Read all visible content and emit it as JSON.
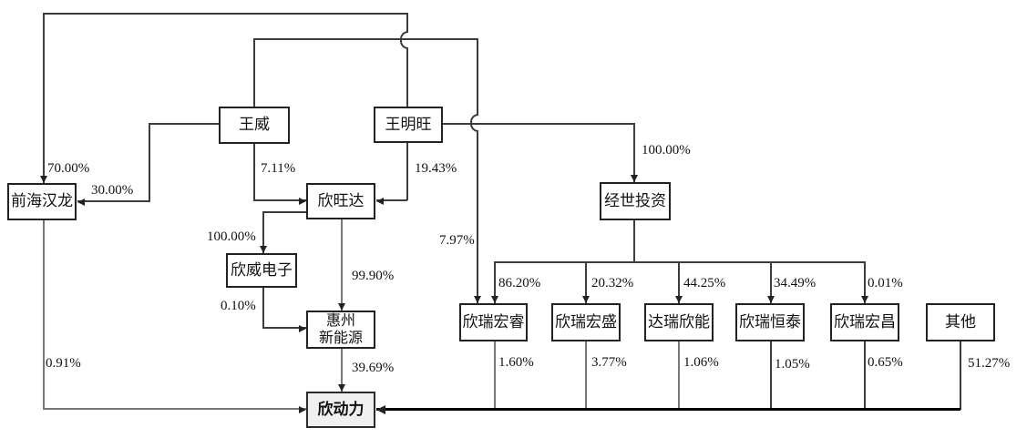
{
  "diagram_type": "equity-ownership-structure",
  "colors": {
    "line": "#3c3c3c",
    "thick_line": "#000000",
    "box_border": "#222222",
    "box_fill": "#ffffff",
    "highlight_box_fill": "#f0f0f0"
  },
  "nodes": [
    {
      "id": "qianhai-hanlong",
      "label": "前海汉龙"
    },
    {
      "id": "wang-wei",
      "label": "王威"
    },
    {
      "id": "wang-mingwang",
      "label": "王明旺"
    },
    {
      "id": "xinwangda",
      "label": "欣旺达"
    },
    {
      "id": "xinwei-dianzi",
      "label": "欣威电子"
    },
    {
      "id": "huizhou-xinnengyuan",
      "label": "惠州\n新能源"
    },
    {
      "id": "jingshi-touzi",
      "label": "经世投资"
    },
    {
      "id": "xinrui-hongrui",
      "label": "欣瑞宏睿"
    },
    {
      "id": "xinrui-hongsheng",
      "label": "欣瑞宏盛"
    },
    {
      "id": "darui-xinneng",
      "label": "达瑞欣能"
    },
    {
      "id": "xinrui-hengtai",
      "label": "欣瑞恒泰"
    },
    {
      "id": "xinrui-hongchang",
      "label": "欣瑞宏昌"
    },
    {
      "id": "qita",
      "label": "其他"
    },
    {
      "id": "xindongli",
      "label": "欣动力"
    }
  ],
  "edges": [
    {
      "from": "王明旺",
      "to": "前海汉龙",
      "percent": "70.00%"
    },
    {
      "from": "王威",
      "to": "前海汉龙",
      "percent": "30.00%"
    },
    {
      "from": "王威",
      "to": "欣旺达",
      "percent": "7.11%"
    },
    {
      "from": "王明旺",
      "to": "欣旺达",
      "percent": "19.43%"
    },
    {
      "from": "王明旺",
      "to": "经世投资",
      "percent": "100.00%"
    },
    {
      "from": "王威",
      "to": "欣瑞宏睿",
      "percent": "7.97%"
    },
    {
      "from": "欣旺达",
      "to": "欣威电子",
      "percent": "100.00%"
    },
    {
      "from": "欣旺达",
      "to": "惠州新能源",
      "percent": "99.90%"
    },
    {
      "from": "欣威电子",
      "to": "惠州新能源",
      "percent": "0.10%"
    },
    {
      "from": "惠州新能源",
      "to": "欣动力",
      "percent": "39.69%"
    },
    {
      "from": "前海汉龙",
      "to": "欣动力",
      "percent": "0.91%"
    },
    {
      "from": "经世投资",
      "to": "欣瑞宏睿",
      "percent": "86.20%"
    },
    {
      "from": "经世投资",
      "to": "欣瑞宏盛",
      "percent": "20.32%"
    },
    {
      "from": "经世投资",
      "to": "达瑞欣能",
      "percent": "44.25%"
    },
    {
      "from": "经世投资",
      "to": "欣瑞恒泰",
      "percent": "34.49%"
    },
    {
      "from": "经世投资",
      "to": "欣瑞宏昌",
      "percent": "0.01%"
    },
    {
      "from": "欣瑞宏睿",
      "to": "欣动力",
      "percent": "1.60%"
    },
    {
      "from": "欣瑞宏盛",
      "to": "欣动力",
      "percent": "3.77%"
    },
    {
      "from": "达瑞欣能",
      "to": "欣动力",
      "percent": "1.06%"
    },
    {
      "from": "欣瑞恒泰",
      "to": "欣动力",
      "percent": "1.05%"
    },
    {
      "from": "欣瑞宏昌",
      "to": "欣动力",
      "percent": "0.65%"
    },
    {
      "from": "其他",
      "to": "欣动力",
      "percent": "51.27%"
    }
  ]
}
